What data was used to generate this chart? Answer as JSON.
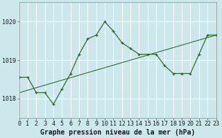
{
  "title": "Graphe pression niveau de la mer (hPa)",
  "bg_color": "#cce8ec",
  "grid_color": "#ffffff",
  "line_color": "#2d6b2d",
  "x_min": 0,
  "x_max": 23,
  "y_min": 1017.5,
  "y_max": 1020.5,
  "yticks": [
    1018,
    1019,
    1020
  ],
  "xticks": [
    0,
    1,
    2,
    3,
    4,
    5,
    6,
    7,
    8,
    9,
    10,
    11,
    12,
    13,
    14,
    15,
    16,
    17,
    18,
    19,
    20,
    21,
    22,
    23
  ],
  "series1_x": [
    0,
    1,
    2,
    3,
    4,
    5,
    6,
    7,
    8,
    9,
    10,
    11,
    12,
    13,
    14,
    15,
    16,
    17,
    18,
    19,
    20,
    21,
    22,
    23
  ],
  "series1_y": [
    1018.55,
    1018.55,
    1018.15,
    1018.15,
    1017.85,
    1018.25,
    1018.65,
    1019.15,
    1019.55,
    1019.65,
    1020.0,
    1019.75,
    1019.45,
    1019.3,
    1019.15,
    1019.15,
    1019.15,
    1018.85,
    1018.65,
    1018.65,
    1018.65,
    1019.15,
    1019.65,
    1019.65
  ],
  "series2_x": [
    0,
    23
  ],
  "series2_y": [
    1018.15,
    1019.65
  ],
  "tick_fontsize": 6.0,
  "title_fontsize": 7.0
}
